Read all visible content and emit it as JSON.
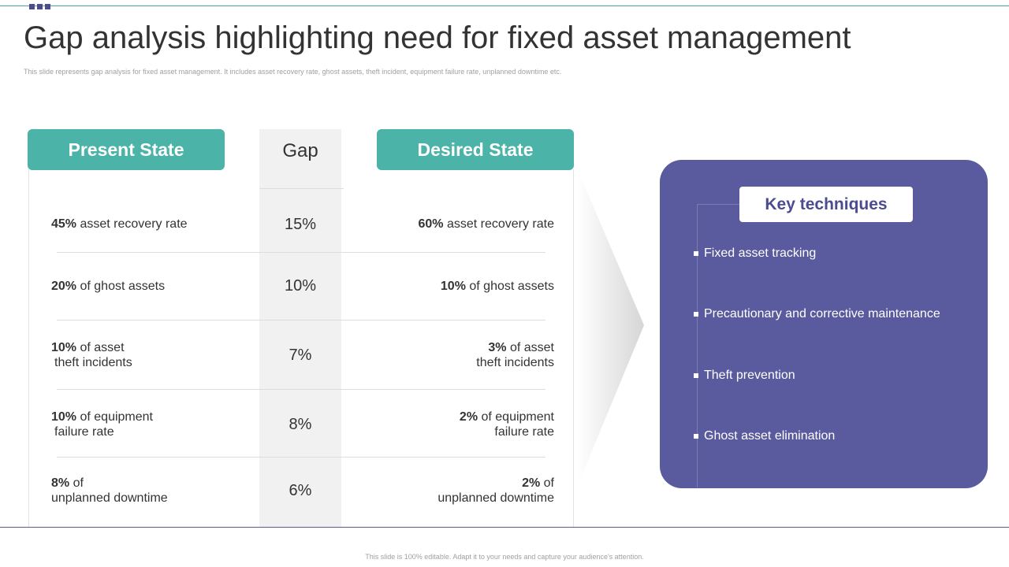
{
  "title": "Gap analysis highlighting need for fixed asset management",
  "subtitle": "This slide represents gap analysis for fixed asset management. It includes asset recovery rate, ghost assets, theft incident, equipment failure rate, unplanned downtime etc.",
  "headers": {
    "present": "Present State",
    "gap": "Gap",
    "desired": "Desired State"
  },
  "rows": [
    {
      "present_value": "45%",
      "present_text": " asset recovery  rate",
      "present_text2": "",
      "gap": "15%",
      "desired_value": "60%",
      "desired_text": " asset recovery  rate",
      "desired_text2": ""
    },
    {
      "present_value": "20%",
      "present_text": " of ghost assets",
      "present_text2": "",
      "gap": "10%",
      "desired_value": "10%",
      "desired_text": " of ghost assets",
      "desired_text2": ""
    },
    {
      "present_value": "10%",
      "present_text": " of asset",
      "present_text2": "theft incidents",
      "gap": "7%",
      "desired_value": "3%",
      "desired_text": " of asset",
      "desired_text2": "theft incidents"
    },
    {
      "present_value": "10%",
      "present_text": " of equipment",
      "present_text2": "failure rate",
      "gap": "8%",
      "desired_value": "2%",
      "desired_text": " of equipment",
      "desired_text2": "failure rate"
    },
    {
      "present_value": "8%",
      "present_text": " of",
      "present_text2": "unplanned  downtime",
      "gap": "6%",
      "desired_value": "2%",
      "desired_text": " of",
      "desired_text2": "unplanned  downtime"
    }
  ],
  "key_techniques": {
    "title": "Key techniques",
    "items": [
      "Fixed asset tracking",
      "Precautionary and corrective maintenance",
      "Theft prevention",
      "Ghost asset elimination"
    ]
  },
  "footer": "This slide is 100% editable. Adapt it to your needs and capture your audience's attention.",
  "colors": {
    "teal": "#4bb3a8",
    "purple": "#5a5a9e",
    "gap_column": "#f1f1f1"
  }
}
